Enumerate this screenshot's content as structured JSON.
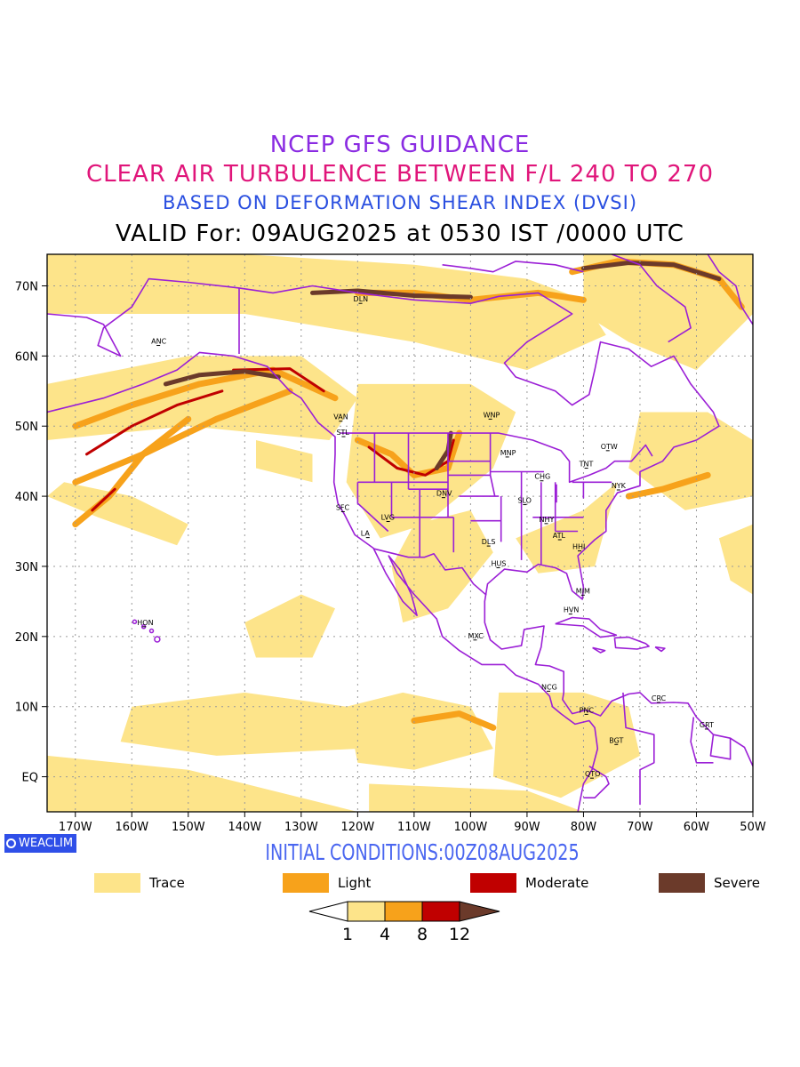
{
  "titles": {
    "line1": "NCEP GFS GUIDANCE",
    "line2": "CLEAR AIR TURBULENCE BETWEEN F/L 240 TO 270",
    "line3": "BASED ON DEFORMATION SHEAR INDEX (DVSI)",
    "line4": "VALID For: 09AUG2025 at 0530 IST /0000 UTC"
  },
  "initial_conditions": "INITIAL CONDITIONS:00Z08AUG2025",
  "logo": "WEACLIM",
  "map": {
    "lat_labels": [
      "70N",
      "60N",
      "50N",
      "40N",
      "30N",
      "20N",
      "10N",
      "EQ"
    ],
    "lon_labels": [
      "170W",
      "160W",
      "150W",
      "140W",
      "130W",
      "120W",
      "110W",
      "100W",
      "90W",
      "80W",
      "70W",
      "60W",
      "50W"
    ],
    "cities": [
      {
        "code": "ANC"
      },
      {
        "code": "DLN"
      },
      {
        "code": "VAN"
      },
      {
        "code": "STL"
      },
      {
        "code": "WNP"
      },
      {
        "code": "MNP"
      },
      {
        "code": "OTW"
      },
      {
        "code": "TNT"
      },
      {
        "code": "CHG"
      },
      {
        "code": "NYK"
      },
      {
        "code": "DNV"
      },
      {
        "code": "SFC"
      },
      {
        "code": "LVG"
      },
      {
        "code": "SLO"
      },
      {
        "code": "NHY"
      },
      {
        "code": "LA"
      },
      {
        "code": "ATL"
      },
      {
        "code": "DLS"
      },
      {
        "code": "HHI"
      },
      {
        "code": "HUS"
      },
      {
        "code": "MIM"
      },
      {
        "code": "HVN"
      },
      {
        "code": "HON"
      },
      {
        "code": "MXC"
      },
      {
        "code": "NCG"
      },
      {
        "code": "CRC"
      },
      {
        "code": "PNC"
      },
      {
        "code": "GRT"
      },
      {
        "code": "BGT"
      },
      {
        "code": "QTO"
      }
    ]
  },
  "legend": [
    {
      "label": "Trace",
      "color": "#fde48a"
    },
    {
      "label": "Light",
      "color": "#f7a21b"
    },
    {
      "label": "Moderate",
      "color": "#c00000"
    },
    {
      "label": "Severe",
      "color": "#6b3a2a"
    }
  ],
  "colorbar": {
    "ticks": [
      "1",
      "4",
      "8",
      "12"
    ],
    "colors": [
      "#ffffff",
      "#fde48a",
      "#f7a21b",
      "#c00000",
      "#6b3a2a"
    ]
  },
  "colors": {
    "trace": "#fde48a",
    "light": "#f7a21b",
    "moderate": "#c00000",
    "severe": "#6b3a2a",
    "coast": "#9b1fd6",
    "grid": "#9a9a9a"
  }
}
